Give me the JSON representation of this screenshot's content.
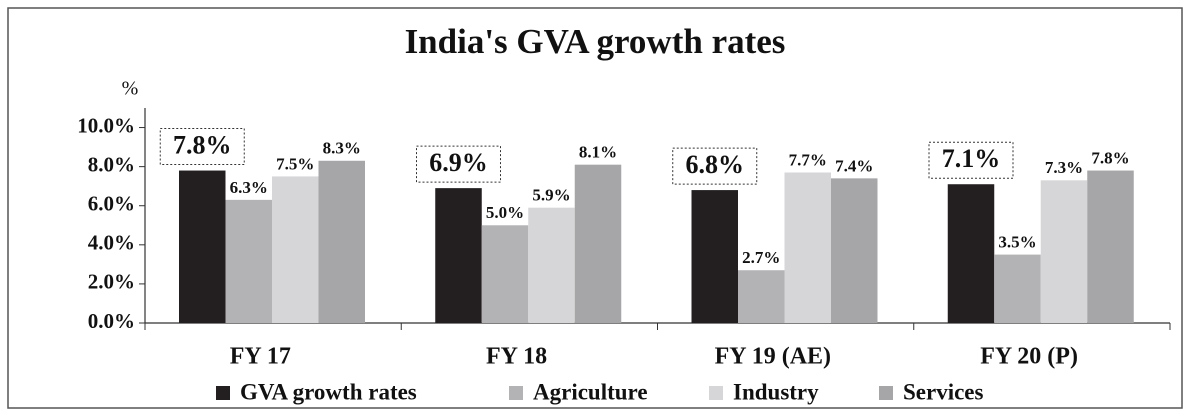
{
  "chart_data": {
    "type": "bar",
    "title": "India's GVA growth rates",
    "ylabel": "%",
    "categories": [
      "FY 17",
      "FY 18",
      "FY 19 (AE)",
      "FY 20 (P)"
    ],
    "series": [
      {
        "name": "GVA growth rates",
        "color": "#231f20",
        "values": [
          7.8,
          6.9,
          6.8,
          7.1
        ],
        "value_labels": [
          "7.8%",
          "6.9%",
          "6.8%",
          "7.1%"
        ]
      },
      {
        "name": "Agriculture",
        "color": "#b3b3b6",
        "values": [
          6.3,
          5.0,
          2.7,
          3.5
        ],
        "value_labels": [
          "6.3%",
          "5.0%",
          "2.7%",
          "3.5%"
        ]
      },
      {
        "name": "Industry",
        "color": "#d6d6d8",
        "values": [
          7.5,
          5.9,
          7.7,
          7.3
        ],
        "value_labels": [
          "7.5%",
          "5.9%",
          "7.7%",
          "7.3%"
        ]
      },
      {
        "name": "Services",
        "color": "#a6a6a8",
        "values": [
          8.3,
          8.1,
          7.4,
          7.8
        ],
        "value_labels": [
          "8.3%",
          "8.1%",
          "7.4%",
          "7.8%"
        ]
      }
    ],
    "ylim": [
      0,
      11
    ],
    "yticks": [
      {
        "value": 0,
        "label": "0.0%"
      },
      {
        "value": 2,
        "label": "2.0%"
      },
      {
        "value": 4,
        "label": "4.0%"
      },
      {
        "value": 6,
        "label": "6.0%"
      },
      {
        "value": 8,
        "label": "8.0%"
      },
      {
        "value": 10,
        "label": "10.0%"
      }
    ]
  }
}
